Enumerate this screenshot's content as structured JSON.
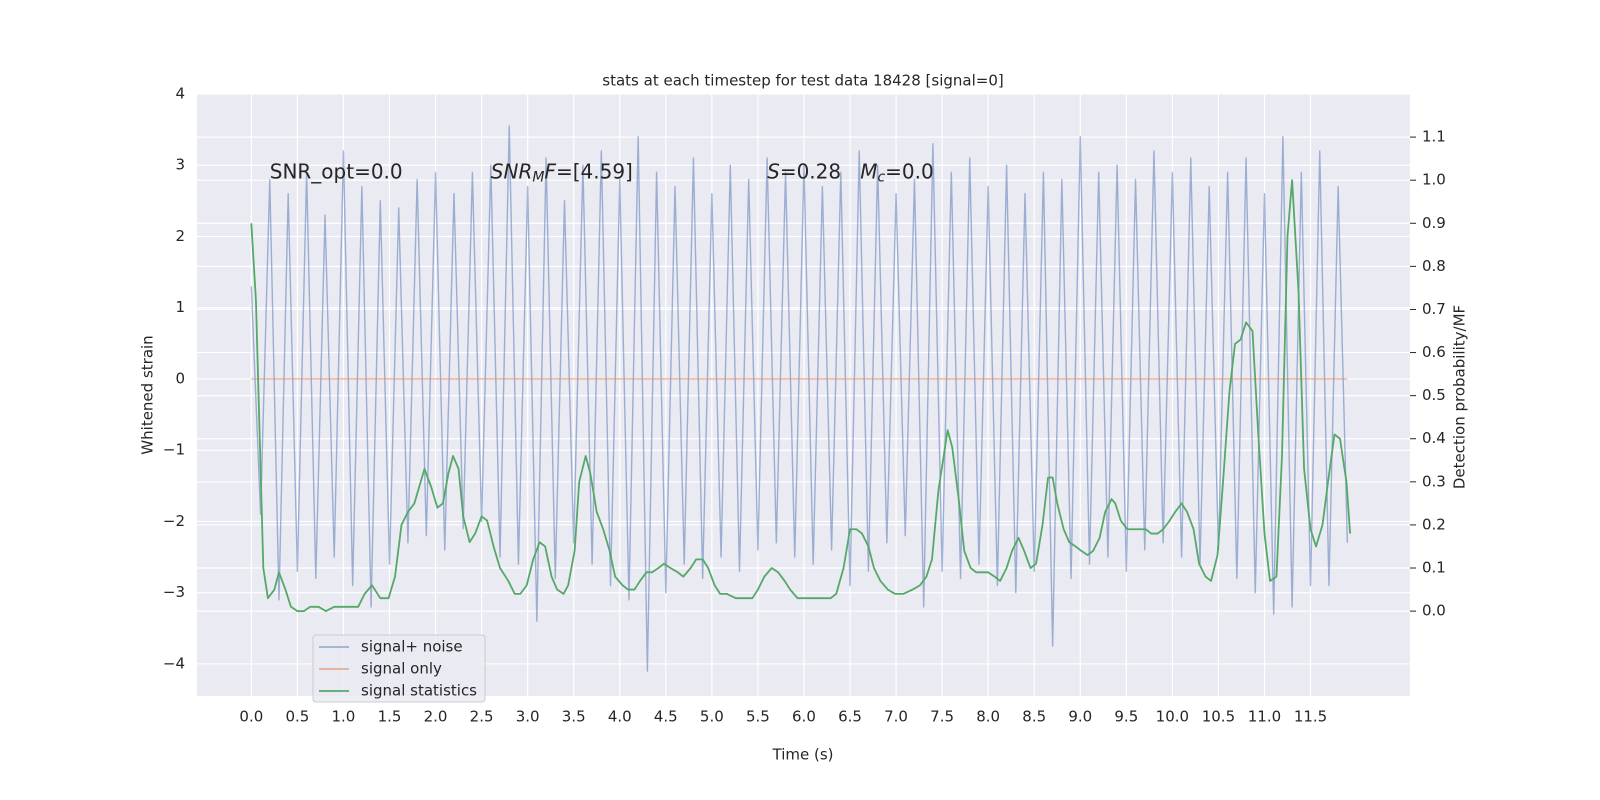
{
  "chart_data": {
    "type": "line",
    "title": "stats at each timestep for test data 18428 [signal=0]",
    "xlabel": "Time (s)",
    "ylabel": "Whitened strain",
    "y2label": "Detection probability/MF",
    "xlim": [
      -0.59,
      12.58
    ],
    "ylim": [
      -4.45,
      4
    ],
    "y2lim": [
      -0.197,
      1.2
    ],
    "grid": true,
    "legend": "lower left",
    "xticks": [
      {
        "value": 0,
        "label": "0.0"
      },
      0.5,
      {
        "value": 1,
        "label": "1.0"
      },
      1.5,
      {
        "value": 2,
        "label": "2.0"
      },
      2.5,
      {
        "value": 3,
        "label": "3.0"
      },
      3.5,
      {
        "value": 4,
        "label": "4.0"
      },
      4.5,
      {
        "value": 5,
        "label": "5.0"
      },
      5.5,
      {
        "value": 6,
        "label": "6.0"
      },
      6.5,
      {
        "value": 7,
        "label": "7.0"
      },
      7.5,
      {
        "value": 8,
        "label": "8.0"
      },
      8.5,
      {
        "value": 9,
        "label": "9.0"
      },
      9.5,
      {
        "value": 10,
        "label": "10.0"
      },
      10.5,
      {
        "value": 11,
        "label": "11.0"
      },
      11.5
    ],
    "yticks": [
      {
        "value": -4,
        "label": "−4"
      },
      {
        "value": -3,
        "label": "−3"
      },
      {
        "value": -2,
        "label": "−2"
      },
      {
        "value": -1,
        "label": "−1"
      },
      0,
      1,
      2,
      3,
      4
    ],
    "y2ticks": [
      {
        "value": 0,
        "label": "0.0"
      },
      0.1,
      0.2,
      0.3,
      0.4,
      0.5,
      0.6,
      0.7,
      0.8,
      0.9,
      {
        "value": 1,
        "label": "1.0"
      },
      1.1
    ],
    "annotations": [
      {
        "x": 0.2,
        "y": 2.9,
        "parts": [
          {
            "text": "SNR_opt=0.0",
            "style": "normal"
          }
        ]
      },
      {
        "x": 2.6,
        "y": 2.9,
        "parts": [
          {
            "text": "SNR",
            "style": "italic"
          },
          {
            "text": "M",
            "style": "sub"
          },
          {
            "text": "F",
            "style": "italic"
          },
          {
            "text": "=[4.59]",
            "style": "normal"
          }
        ]
      },
      {
        "x": 5.6,
        "y": 2.9,
        "parts": [
          {
            "text": "S",
            "style": "italic"
          },
          {
            "text": "=0.28   ",
            "style": "normal"
          },
          {
            "text": "M",
            "style": "italic"
          },
          {
            "text": "c",
            "style": "sub"
          },
          {
            "text": "=0.0",
            "style": "normal"
          }
        ]
      }
    ],
    "series": [
      {
        "name": "signal+ noise",
        "color": "#4c72b0",
        "opacity": 0.5,
        "x": [
          0,
          0.1,
          0.2,
          0.3,
          0.4,
          0.5,
          0.6,
          0.7,
          0.8,
          0.9,
          1,
          1.1,
          1.2,
          1.3,
          1.4,
          1.5,
          1.6,
          1.7,
          1.8,
          1.9,
          2,
          2.1,
          2.2,
          2.3,
          2.4,
          2.5,
          2.6,
          2.7,
          2.8,
          2.9,
          3,
          3.1,
          3.2,
          3.3,
          3.4,
          3.5,
          3.6,
          3.7,
          3.8,
          3.9,
          4,
          4.1,
          4.2,
          4.3,
          4.4,
          4.5,
          4.6,
          4.7,
          4.8,
          4.9,
          5,
          5.1,
          5.2,
          5.3,
          5.4,
          5.5,
          5.6,
          5.7,
          5.8,
          5.9,
          6,
          6.1,
          6.2,
          6.3,
          6.4,
          6.5,
          6.6,
          6.7,
          6.8,
          6.9,
          7,
          7.1,
          7.2,
          7.3,
          7.4,
          7.5,
          7.6,
          7.7,
          7.8,
          7.9,
          8,
          8.1,
          8.2,
          8.3,
          8.4,
          8.5,
          8.6,
          8.7,
          8.8,
          8.9,
          9,
          9.1,
          9.2,
          9.3,
          9.4,
          9.5,
          9.6,
          9.7,
          9.8,
          9.9,
          10,
          10.1,
          10.2,
          10.3,
          10.4,
          10.5,
          10.6,
          10.7,
          10.8,
          10.9,
          11,
          11.1,
          11.2,
          11.3,
          11.4,
          11.5,
          11.6,
          11.7,
          11.8,
          11.9
        ],
        "values": [
          1.3,
          -1.9,
          2.8,
          -3.1,
          2.6,
          -2.7,
          2.9,
          -2.8,
          2.3,
          -2.5,
          3.2,
          -2.9,
          2.7,
          -3.2,
          2.5,
          -2.6,
          2.4,
          -2.3,
          2.8,
          -2.2,
          2.9,
          -2.4,
          2.6,
          -2.1,
          2.9,
          -2.0,
          3.0,
          -2.5,
          3.55,
          -2.6,
          2.7,
          -3.4,
          3.1,
          -2.8,
          2.5,
          -2.3,
          3.0,
          -2.6,
          3.2,
          -2.9,
          2.8,
          -3.1,
          3.4,
          -4.1,
          2.9,
          -3.0,
          2.7,
          -2.6,
          3.1,
          -2.8,
          2.6,
          -2.5,
          3.0,
          -2.7,
          2.8,
          -2.4,
          3.1,
          -2.3,
          2.9,
          -2.5,
          3.0,
          -2.6,
          2.7,
          -2.4,
          2.9,
          -2.9,
          3.2,
          -2.7,
          3.0,
          -2.3,
          2.6,
          -2.2,
          2.8,
          -3.2,
          3.3,
          -2.7,
          2.9,
          -2.8,
          3.1,
          -2.6,
          2.7,
          -2.9,
          3.0,
          -3.0,
          2.6,
          -2.7,
          2.9,
          -3.75,
          2.8,
          -2.8,
          3.4,
          -2.6,
          2.9,
          -2.5,
          3.0,
          -2.7,
          2.8,
          -2.4,
          3.2,
          -2.3,
          2.9,
          -2.5,
          3.1,
          -2.6,
          2.7,
          -2.4,
          2.9,
          -2.8,
          3.1,
          -3.0,
          2.6,
          -3.3,
          3.4,
          -3.2,
          2.9,
          -2.9,
          3.2,
          -2.9,
          2.7,
          -2.3
        ]
      },
      {
        "name": "signal only",
        "color": "#dd8452",
        "opacity": 0.6,
        "x": [
          0,
          11.9
        ],
        "values": [
          0,
          0
        ]
      },
      {
        "name": "signal statistics",
        "color": "#55a868",
        "opacity": 1,
        "axis": "y2",
        "x": [
          0,
          0.05,
          0.13,
          0.18,
          0.25,
          0.3,
          0.37,
          0.43,
          0.5,
          0.57,
          0.64,
          0.73,
          0.81,
          0.9,
          0.99,
          1.08,
          1.16,
          1.23,
          1.31,
          1.4,
          1.49,
          1.56,
          1.63,
          1.7,
          1.77,
          1.88,
          1.95,
          2.02,
          2.08,
          2.14,
          2.19,
          2.25,
          2.3,
          2.37,
          2.43,
          2.5,
          2.56,
          2.63,
          2.7,
          2.79,
          2.86,
          2.92,
          2.99,
          3.06,
          3.13,
          3.19,
          3.26,
          3.32,
          3.39,
          3.44,
          3.51,
          3.56,
          3.63,
          3.68,
          3.75,
          3.82,
          3.89,
          3.95,
          4.03,
          4.09,
          4.16,
          4.22,
          4.29,
          4.35,
          4.42,
          4.48,
          4.55,
          4.63,
          4.69,
          4.77,
          4.83,
          4.9,
          4.96,
          5.03,
          5.09,
          5.16,
          5.26,
          5.36,
          5.44,
          5.5,
          5.57,
          5.65,
          5.72,
          5.79,
          5.85,
          5.93,
          5.99,
          6.08,
          6.18,
          6.29,
          6.35,
          6.43,
          6.5,
          6.57,
          6.63,
          6.7,
          6.76,
          6.83,
          6.91,
          6.99,
          7.08,
          7.18,
          7.26,
          7.33,
          7.39,
          7.46,
          7.56,
          7.61,
          7.68,
          7.74,
          7.81,
          7.87,
          7.94,
          8,
          8.07,
          8.13,
          8.2,
          8.26,
          8.33,
          8.39,
          8.46,
          8.52,
          8.59,
          8.65,
          8.7,
          8.75,
          8.82,
          8.88,
          8.95,
          9.01,
          9.08,
          9.14,
          9.21,
          9.27,
          9.34,
          9.38,
          9.44,
          9.51,
          9.58,
          9.64,
          9.71,
          9.77,
          9.84,
          9.9,
          9.97,
          10.03,
          10.1,
          10.16,
          10.23,
          10.29,
          10.36,
          10.42,
          10.49,
          10.55,
          10.62,
          10.68,
          10.74,
          10.8,
          10.87,
          10.93,
          11,
          11.06,
          11.13,
          11.19,
          11.25,
          11.3,
          11.37,
          11.43,
          11.5,
          11.56,
          11.63,
          11.69,
          11.76,
          11.82,
          11.89,
          11.93
        ],
        "values": [
          0.9,
          0.72,
          0.1,
          0.03,
          0.05,
          0.09,
          0.05,
          0.01,
          0,
          0,
          0.01,
          0.01,
          0,
          0.01,
          0.01,
          0.01,
          0.01,
          0.04,
          0.06,
          0.03,
          0.03,
          0.08,
          0.2,
          0.23,
          0.25,
          0.33,
          0.29,
          0.24,
          0.25,
          0.32,
          0.36,
          0.33,
          0.22,
          0.16,
          0.18,
          0.22,
          0.21,
          0.15,
          0.1,
          0.07,
          0.04,
          0.04,
          0.06,
          0.12,
          0.16,
          0.15,
          0.08,
          0.05,
          0.04,
          0.06,
          0.14,
          0.3,
          0.36,
          0.32,
          0.23,
          0.19,
          0.14,
          0.08,
          0.06,
          0.05,
          0.05,
          0.07,
          0.09,
          0.09,
          0.1,
          0.11,
          0.1,
          0.09,
          0.08,
          0.1,
          0.12,
          0.12,
          0.1,
          0.06,
          0.04,
          0.04,
          0.03,
          0.03,
          0.03,
          0.05,
          0.08,
          0.1,
          0.09,
          0.07,
          0.05,
          0.03,
          0.03,
          0.03,
          0.03,
          0.03,
          0.04,
          0.1,
          0.19,
          0.19,
          0.18,
          0.15,
          0.1,
          0.07,
          0.05,
          0.04,
          0.04,
          0.05,
          0.06,
          0.08,
          0.12,
          0.28,
          0.42,
          0.38,
          0.26,
          0.14,
          0.1,
          0.09,
          0.09,
          0.09,
          0.08,
          0.07,
          0.1,
          0.14,
          0.17,
          0.14,
          0.1,
          0.11,
          0.2,
          0.31,
          0.31,
          0.25,
          0.19,
          0.16,
          0.15,
          0.14,
          0.13,
          0.14,
          0.17,
          0.23,
          0.26,
          0.25,
          0.21,
          0.19,
          0.19,
          0.19,
          0.19,
          0.18,
          0.18,
          0.19,
          0.21,
          0.23,
          0.25,
          0.23,
          0.19,
          0.11,
          0.08,
          0.07,
          0.13,
          0.3,
          0.51,
          0.62,
          0.63,
          0.67,
          0.65,
          0.42,
          0.18,
          0.07,
          0.08,
          0.36,
          0.87,
          1,
          0.74,
          0.33,
          0.19,
          0.15,
          0.2,
          0.3,
          0.41,
          0.4,
          0.3,
          0.18
        ]
      }
    ]
  }
}
